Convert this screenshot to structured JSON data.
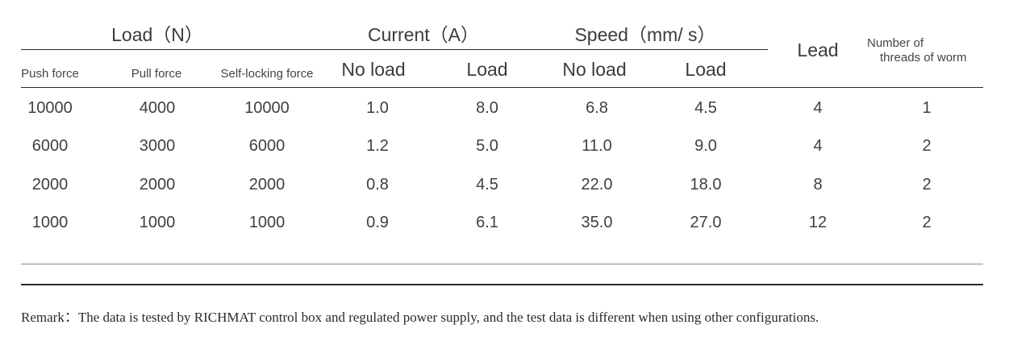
{
  "table": {
    "groups": {
      "load": "Load（N）",
      "current": "Current（A）",
      "speed": "Speed（mm/ s）"
    },
    "headers": {
      "push_force": "Push force",
      "pull_force": "Pull force",
      "self_locking_force": "Self-locking force",
      "current_no_load": "No load",
      "current_load": "Load",
      "speed_no_load": "No load",
      "speed_load": "Load",
      "lead": "Lead",
      "threads_line1": "Number of",
      "threads_line2": "threads of worm"
    },
    "rows": [
      [
        "10000",
        "4000",
        "10000",
        "1.0",
        "8.0",
        "6.8",
        "4.5",
        "4",
        "1"
      ],
      [
        "6000",
        "3000",
        "6000",
        "1.2",
        "5.0",
        "11.0",
        "9.0",
        "4",
        "2"
      ],
      [
        "2000",
        "2000",
        "2000",
        "0.8",
        "4.5",
        "22.0",
        "18.0",
        "8",
        "2"
      ],
      [
        "1000",
        "1000",
        "1000",
        "0.9",
        "6.1",
        "35.0",
        "27.0",
        "12",
        "2"
      ]
    ]
  },
  "remark": "Remark：The data is tested by RICHMAT control box and regulated power supply, and the test data is different when using other configurations."
}
